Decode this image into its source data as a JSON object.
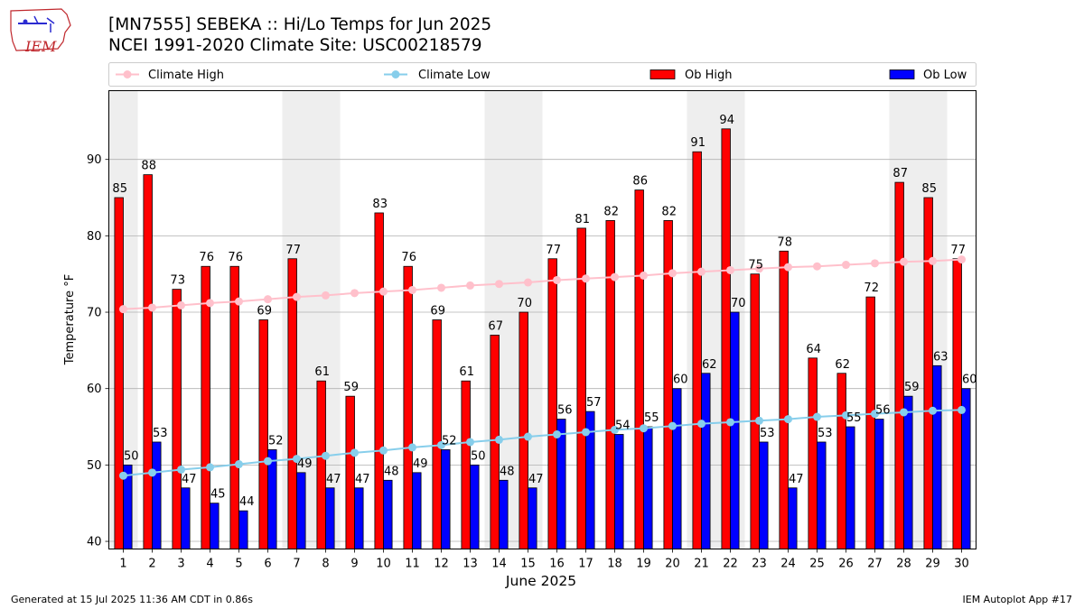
{
  "header": {
    "title_line1": "[MN7555] SEBEKA :: Hi/Lo Temps for Jun 2025",
    "title_line2": "NCEI 1991-2020 Climate Site: USC00218579"
  },
  "logo": {
    "icon": "iem-iowa-map-logo",
    "text": "IEM"
  },
  "footer": {
    "left": "Generated at 15 Jul 2025 11:36 AM CDT in 0.86s",
    "right": "IEM Autoplot App #17"
  },
  "colors": {
    "ob_high": "#ff0000",
    "ob_low": "#0000ff",
    "climate_high": "#ffc0cb",
    "climate_low": "#87ceeb",
    "weekend_shade": "#eeeeee",
    "grid": "#b0b0b0"
  },
  "chart_data": {
    "type": "bar",
    "xlabel": "June 2025",
    "ylabel": "Temperature °F",
    "ylim": [
      39,
      99
    ],
    "yticks": [
      40,
      50,
      60,
      70,
      80,
      90
    ],
    "grid": "horizontal",
    "legend_position": "top",
    "categories": [
      "1",
      "2",
      "3",
      "4",
      "5",
      "6",
      "7",
      "8",
      "9",
      "10",
      "11",
      "12",
      "13",
      "14",
      "15",
      "16",
      "17",
      "18",
      "19",
      "20",
      "21",
      "22",
      "23",
      "24",
      "25",
      "26",
      "27",
      "28",
      "29",
      "30"
    ],
    "shaded_days": [
      1,
      7,
      8,
      14,
      15,
      21,
      22,
      28,
      29
    ],
    "series": [
      {
        "name": "Ob High",
        "kind": "bar",
        "values": [
          85,
          88,
          73,
          76,
          76,
          69,
          77,
          61,
          59,
          83,
          76,
          69,
          61,
          67,
          70,
          77,
          81,
          82,
          86,
          82,
          91,
          94,
          75,
          78,
          64,
          62,
          72,
          87,
          85,
          77
        ]
      },
      {
        "name": "Ob Low",
        "kind": "bar",
        "values": [
          50,
          53,
          47,
          45,
          44,
          52,
          49,
          47,
          47,
          48,
          49,
          52,
          50,
          48,
          47,
          56,
          57,
          54,
          55,
          60,
          62,
          70,
          53,
          47,
          53,
          55,
          56,
          59,
          63,
          60
        ]
      },
      {
        "name": "Climate High",
        "kind": "line",
        "values": [
          70.4,
          70.6,
          70.9,
          71.2,
          71.4,
          71.7,
          72.0,
          72.2,
          72.5,
          72.7,
          72.9,
          73.2,
          73.5,
          73.7,
          73.9,
          74.2,
          74.4,
          74.6,
          74.8,
          75.1,
          75.3,
          75.5,
          75.7,
          75.9,
          76.0,
          76.2,
          76.4,
          76.6,
          76.7,
          76.9
        ]
      },
      {
        "name": "Climate Low",
        "kind": "line",
        "values": [
          48.6,
          49.0,
          49.4,
          49.7,
          50.1,
          50.5,
          50.8,
          51.2,
          51.6,
          51.9,
          52.3,
          52.6,
          53.0,
          53.3,
          53.7,
          54.0,
          54.3,
          54.6,
          54.8,
          55.1,
          55.4,
          55.6,
          55.8,
          56.0,
          56.3,
          56.5,
          56.7,
          56.9,
          57.1,
          57.2
        ]
      }
    ]
  }
}
